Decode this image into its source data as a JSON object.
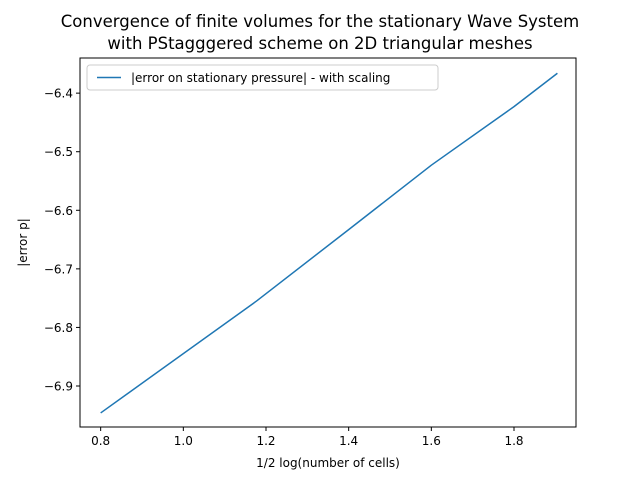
{
  "chart_data": {
    "type": "line",
    "title_lines": [
      "Convergence of finite volumes for the stationary Wave System",
      "with PStagggered scheme on 2D triangular meshes"
    ],
    "xlabel": "1/2 log(number of cells)",
    "ylabel": "|error p|",
    "xlim": [
      0.75,
      1.95
    ],
    "ylim": [
      -6.97,
      -6.34
    ],
    "xticks": [
      0.8,
      1.0,
      1.2,
      1.4,
      1.6,
      1.8
    ],
    "xtick_labels": [
      "0.8",
      "1.0",
      "1.2",
      "1.4",
      "1.6",
      "1.8"
    ],
    "yticks": [
      -6.9,
      -6.8,
      -6.7,
      -6.6,
      -6.5,
      -6.4
    ],
    "ytick_labels": [
      "−6.9",
      "−6.8",
      "−6.7",
      "−6.6",
      "−6.5",
      "−6.4"
    ],
    "legend_position": "upper-left",
    "grid": false,
    "series": [
      {
        "name": "|error on stationary pressure| - with scaling",
        "color": "#1f77b4",
        "x": [
          0.8,
          1.177,
          1.4,
          1.6,
          1.8,
          1.905
        ],
        "y": [
          -6.946,
          -6.755,
          -6.633,
          -6.523,
          -6.423,
          -6.366
        ]
      }
    ]
  }
}
